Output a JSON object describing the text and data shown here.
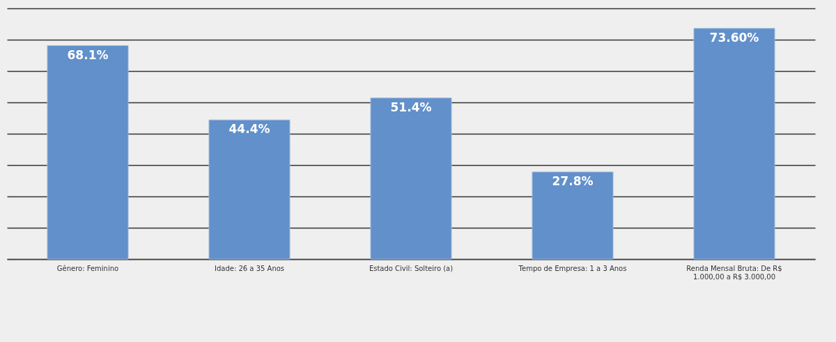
{
  "chart_data": {
    "type": "bar",
    "categories": [
      "Gênero: Feminino",
      "Idade: 26 a 35 Anos",
      "Estado Civil: Solteiro (a)",
      "Tempo de Empresa: 1 a 3 Anos",
      "Renda Mensal Bruta: De R$ 1.000,00 a R$ 3.000,00"
    ],
    "values": [
      68.1,
      44.4,
      51.4,
      27.8,
      73.6
    ],
    "value_labels": [
      "68.1%",
      "44.4%",
      "51.4%",
      "27.8%",
      "73.60%"
    ],
    "color": "#6190cb",
    "ylim": [
      0,
      80
    ],
    "yticks": [
      {
        "value": 0,
        "label": null
      },
      {
        "value": 10,
        "label": null
      },
      {
        "value": 20,
        "label": null
      },
      {
        "value": 30,
        "label": null
      },
      {
        "value": 40,
        "label": null
      },
      {
        "value": 50,
        "label": null
      },
      {
        "value": 60,
        "label": null
      },
      {
        "value": 70,
        "label": null
      },
      {
        "value": 80,
        "label": null
      }
    ],
    "grid": "y",
    "tick_labels": "x"
  }
}
